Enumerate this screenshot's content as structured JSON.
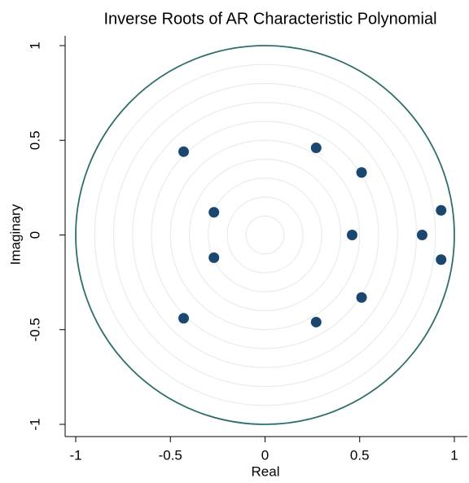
{
  "chart_data": {
    "type": "scatter",
    "title": "Inverse Roots of AR Characteristic Polynomial",
    "xlabel": "Real",
    "ylabel": "Imaginary",
    "x": [
      -0.43,
      -0.27,
      -0.27,
      -0.43,
      0.27,
      0.51,
      0.46,
      0.83,
      0.93,
      0.93,
      0.51,
      0.27
    ],
    "y": [
      0.44,
      0.12,
      -0.12,
      -0.44,
      0.46,
      0.33,
      0,
      0,
      0.13,
      -0.13,
      -0.33,
      -0.46
    ],
    "color": "#1a476f",
    "xlim": [
      -1,
      1
    ],
    "ylim": [
      -1,
      1
    ],
    "xticks": [
      -1,
      -0.5,
      0,
      0.5,
      1
    ],
    "yticks": [
      -1,
      -0.5,
      0,
      0.5,
      1
    ],
    "unit_circle": true,
    "circle_color": "#2e6e6a"
  }
}
